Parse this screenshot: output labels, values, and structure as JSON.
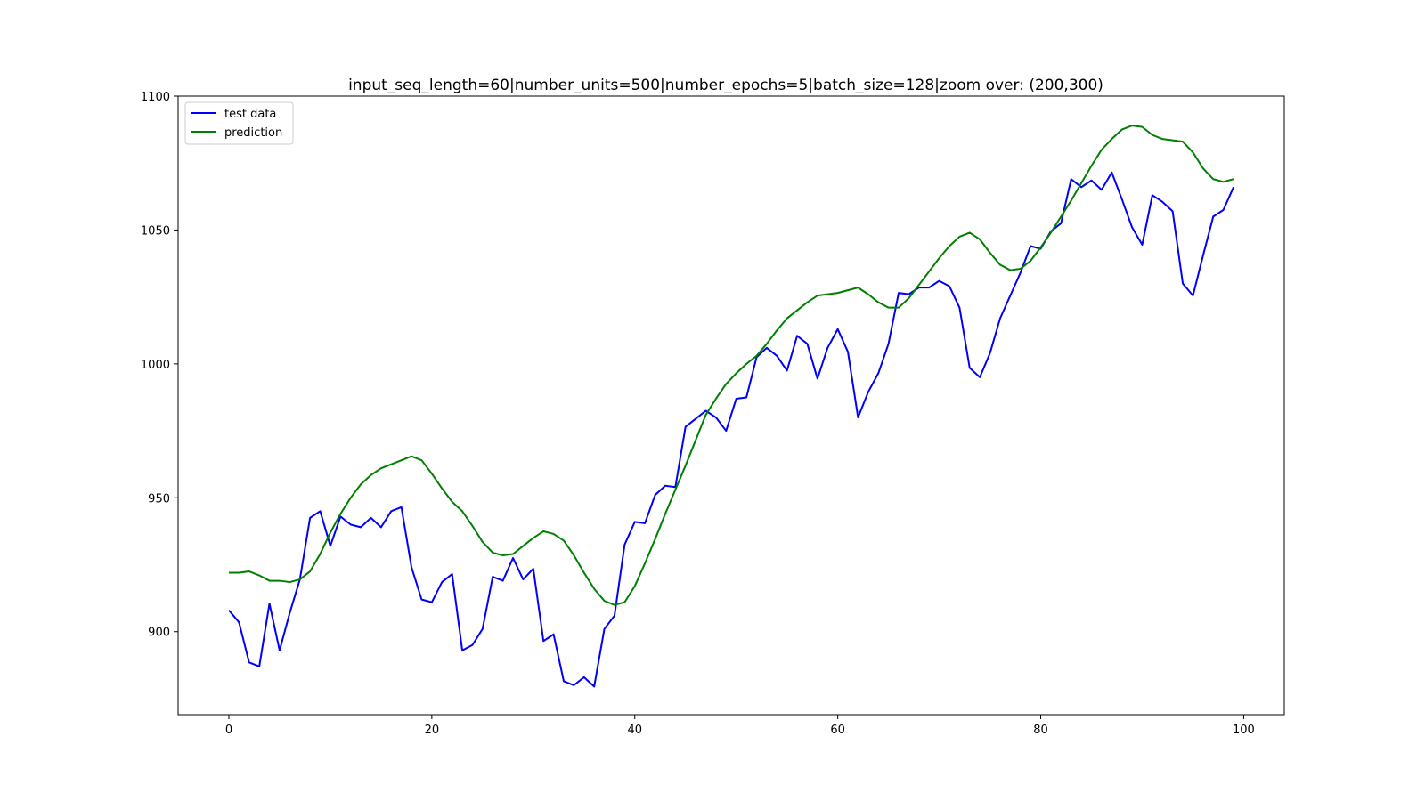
{
  "chart_data": {
    "type": "line",
    "title": "input_seq_length=60|number_units=500|number_epochs=5|batch_size=128|zoom over: (200,300)",
    "xlabel": "",
    "ylabel": "",
    "xlim": [
      -5,
      104
    ],
    "ylim": [
      869,
      1100
    ],
    "xticks": [
      0,
      20,
      40,
      60,
      80,
      100
    ],
    "yticks": [
      900,
      950,
      1000,
      1050,
      1100
    ],
    "grid": false,
    "legend_position": "upper-left",
    "series": [
      {
        "name": "test data",
        "color": "#0000ff",
        "values": [
          908,
          903.5,
          888.5,
          887,
          910.5,
          893,
          907,
          919.5,
          942.5,
          945,
          932,
          943,
          940,
          939,
          942.5,
          939,
          945,
          946.5,
          924,
          912,
          911,
          918.5,
          921.5,
          893,
          895,
          901,
          920.5,
          919,
          927.5,
          919.5,
          923.5,
          896.5,
          899,
          881.5,
          880,
          883,
          879.5,
          901,
          906,
          932.5,
          941,
          940.5,
          951,
          954.5,
          954,
          976.5,
          979.5,
          982.5,
          980,
          975,
          987,
          987.5,
          1002.5,
          1006,
          1003,
          997.5,
          1010.5,
          1007.5,
          994.5,
          1006,
          1013,
          1004.5,
          980,
          989.5,
          996.5,
          1007.5,
          1026.5,
          1026,
          1028.5,
          1028.5,
          1031,
          1029,
          1021,
          998.5,
          995,
          1004,
          1017,
          1025.5,
          1034,
          1044,
          1043,
          1049.5,
          1052.5,
          1069,
          1066,
          1068.5,
          1065,
          1071.5,
          1061.5,
          1051,
          1044.5,
          1063,
          1060.5,
          1057,
          1030,
          1025.5,
          1040.5,
          1055,
          1057.5,
          1066
        ]
      },
      {
        "name": "prediction",
        "color": "#008000",
        "values": [
          922,
          922,
          922.5,
          921,
          919,
          919,
          918.5,
          919.5,
          922.5,
          929,
          937,
          944,
          950,
          955,
          958.5,
          961,
          962.5,
          964,
          965.5,
          964,
          959,
          953.5,
          948.5,
          945,
          939.5,
          933.5,
          929.5,
          928.5,
          929,
          932,
          935,
          937.5,
          936.5,
          934,
          928.5,
          922,
          916,
          911.5,
          910,
          911,
          917,
          925.5,
          934.5,
          944,
          953,
          962,
          971.5,
          981,
          987,
          992.5,
          996.5,
          1000,
          1003,
          1007.5,
          1012.5,
          1017,
          1020,
          1023,
          1025.5,
          1026,
          1026.5,
          1027.5,
          1028.5,
          1026,
          1023,
          1021,
          1021,
          1024.5,
          1029.5,
          1034.5,
          1039.5,
          1044,
          1047.5,
          1049,
          1046.5,
          1041.5,
          1037,
          1035,
          1035.5,
          1038.5,
          1043.5,
          1049,
          1055,
          1061,
          1067.5,
          1074,
          1080,
          1084,
          1087.5,
          1089,
          1088.5,
          1085.5,
          1084,
          1083.5,
          1083,
          1079,
          1073,
          1069,
          1068,
          1069
        ]
      }
    ]
  }
}
